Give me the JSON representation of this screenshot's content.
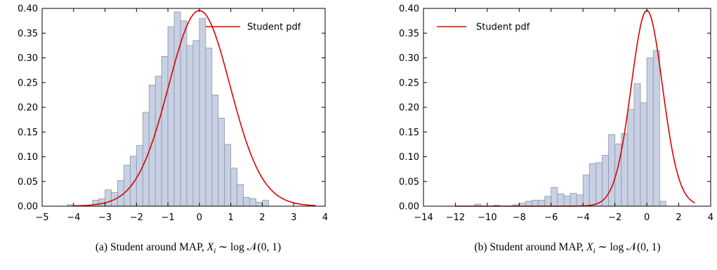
{
  "chart_data": [
    {
      "type": "bar",
      "subplot_label": "(a)",
      "caption_text": "Student around MAP,",
      "caption_var": "X",
      "caption_sub": "i",
      "caption_formula": "∼ log 𝒩(0, 1)",
      "xlim": [
        -5,
        4
      ],
      "ylim": [
        0,
        0.4
      ],
      "xticks": [
        -5,
        -4,
        -3,
        -2,
        -1,
        0,
        1,
        2,
        3,
        4
      ],
      "xtick_labels": [
        "−5",
        "−4",
        "−3",
        "−2",
        "−1",
        "0",
        "1",
        "2",
        "3",
        "4"
      ],
      "yticks": [
        0,
        0.05,
        0.1,
        0.15,
        0.2,
        0.25,
        0.3,
        0.35,
        0.4
      ],
      "ytick_labels": [
        "0.00",
        "0.05",
        "0.10",
        "0.15",
        "0.20",
        "0.25",
        "0.30",
        "0.35",
        "0.40"
      ],
      "legend": {
        "label": "Student pdf",
        "position": "top-right"
      },
      "colors": {
        "bar_fill": "#c7d1e3",
        "bar_stroke": "#8e96a8",
        "curve": "#e00000"
      },
      "curve": {
        "type": "student-t",
        "df": 30,
        "x_range": [
          -4.0,
          3.7
        ]
      },
      "histogram": {
        "bin_edges": [
          -4.2,
          -4.0,
          -3.4,
          -3.2,
          -3.0,
          -2.8,
          -2.6,
          -2.4,
          -2.2,
          -2.0,
          -1.8,
          -1.6,
          -1.4,
          -1.2,
          -1.0,
          -0.8,
          -0.6,
          -0.4,
          -0.2,
          0.0,
          0.2,
          0.4,
          0.6,
          0.8,
          1.0,
          1.2,
          1.4,
          1.6,
          1.8,
          2.0,
          2.2,
          2.4,
          2.6,
          2.8,
          3.0
        ],
        "values": [
          0.003,
          0.0,
          0.012,
          0.015,
          0.033,
          0.028,
          0.052,
          0.083,
          0.101,
          0.123,
          0.19,
          0.245,
          0.263,
          0.303,
          0.363,
          0.393,
          0.375,
          0.325,
          0.335,
          0.38,
          0.32,
          0.225,
          0.178,
          0.125,
          0.077,
          0.044,
          0.018,
          0.015,
          0.008,
          0.012,
          0.0,
          0.0,
          0.0,
          0.0
        ]
      }
    },
    {
      "type": "bar",
      "subplot_label": "(b)",
      "caption_text": "Student around MAP,",
      "caption_var": "X",
      "caption_sub": "i",
      "caption_formula": "∼ log 𝒩(0, 1)",
      "xlim": [
        -14,
        4
      ],
      "ylim": [
        0,
        0.4
      ],
      "xticks": [
        -14,
        -12,
        -10,
        -8,
        -6,
        -4,
        -2,
        0,
        2,
        4
      ],
      "xtick_labels": [
        "−14",
        "−12",
        "−10",
        "−8",
        "−6",
        "−4",
        "−2",
        "0",
        "2",
        "4"
      ],
      "yticks": [
        0,
        0.05,
        0.1,
        0.15,
        0.2,
        0.25,
        0.3,
        0.35,
        0.4
      ],
      "ytick_labels": [
        "0.00",
        "0.05",
        "0.10",
        "0.15",
        "0.20",
        "0.25",
        "0.30",
        "0.35",
        "0.40"
      ],
      "legend": {
        "label": "Student pdf",
        "position": "top-left"
      },
      "colors": {
        "bar_fill": "#c7d1e3",
        "bar_stroke": "#8e96a8",
        "curve": "#e00000"
      },
      "curve": {
        "type": "student-t",
        "df": 30,
        "x_range": [
          -12.0,
          3.0
        ]
      },
      "histogram": {
        "bin_edges": [
          -10.8,
          -10.4,
          -10.0,
          -9.6,
          -9.2,
          -8.8,
          -8.4,
          -8.0,
          -7.6,
          -7.2,
          -6.8,
          -6.4,
          -6.0,
          -5.6,
          -5.2,
          -4.8,
          -4.4,
          -4.0,
          -3.6,
          -3.2,
          -2.8,
          -2.4,
          -2.0,
          -1.6,
          -1.2,
          -0.8,
          -0.4,
          0.0,
          0.4,
          0.8,
          1.2
        ],
        "values": [
          0.004,
          0.0,
          0.0,
          0.002,
          0.0,
          0.0,
          0.003,
          0.006,
          0.01,
          0.012,
          0.012,
          0.02,
          0.038,
          0.025,
          0.021,
          0.026,
          0.023,
          0.063,
          0.086,
          0.088,
          0.103,
          0.145,
          0.126,
          0.147,
          0.196,
          0.248,
          0.209,
          0.3,
          0.315,
          0.01
        ]
      }
    }
  ]
}
